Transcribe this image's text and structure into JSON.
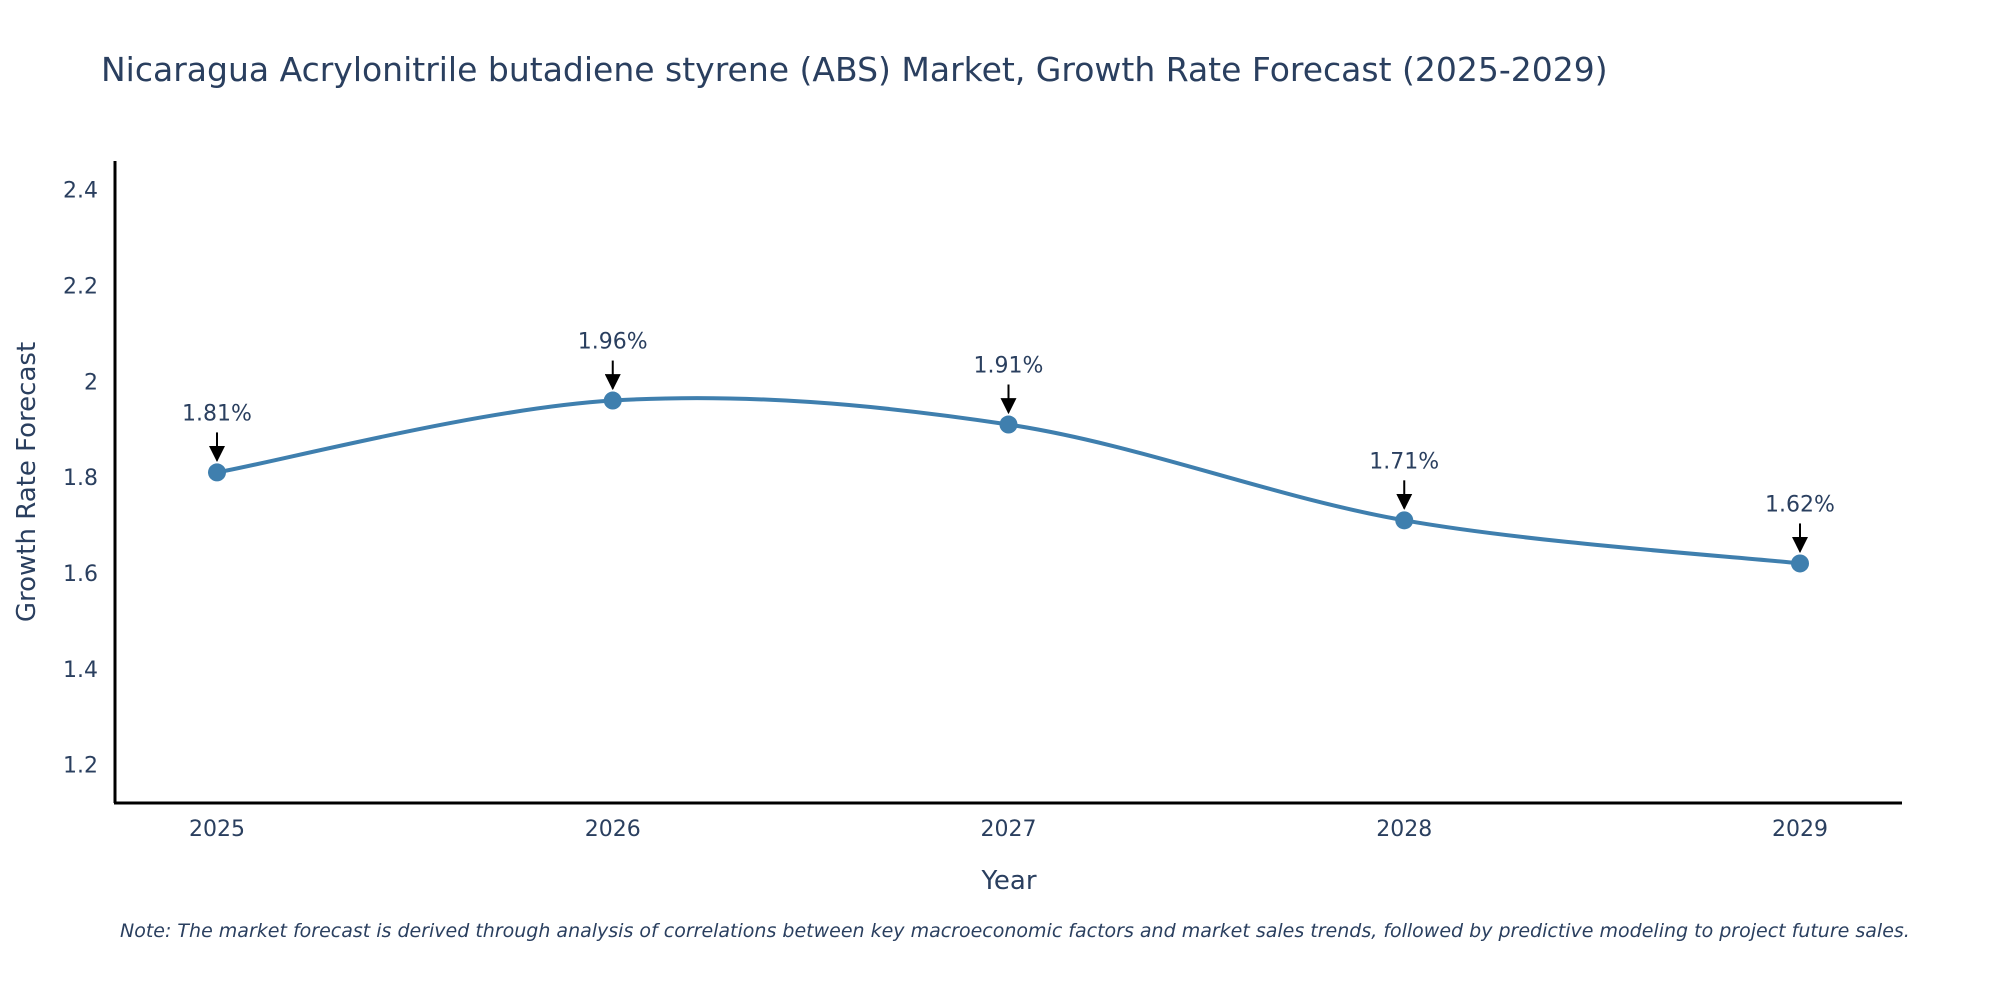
{
  "chart_data": {
    "type": "line",
    "title": "Nicaragua Acrylonitrile butadiene styrene (ABS) Market, Growth Rate Forecast (2025-2029)",
    "xlabel": "Year",
    "ylabel": "Growth Rate Forecast",
    "categories": [
      "2025",
      "2026",
      "2027",
      "2028",
      "2029"
    ],
    "series": [
      {
        "name": "Growth Rate Forecast",
        "values": [
          1.81,
          1.96,
          1.91,
          1.71,
          1.62
        ]
      }
    ],
    "data_labels": [
      "1.81%",
      "1.96%",
      "1.91%",
      "1.71%",
      "1.62%"
    ],
    "ylim": [
      1.12,
      2.46
    ],
    "yticks": [
      1.2,
      1.4,
      1.6,
      1.8,
      2,
      2.2,
      2.4
    ],
    "ytick_labels": [
      "1.2",
      "1.4",
      "1.6",
      "1.8",
      "2",
      "2.2",
      "2.4"
    ],
    "grid": false,
    "line_color": "#3f7fae",
    "note": "Note: The market forecast is derived through analysis of correlations between key macroeconomic factors and market sales trends, followed by predictive modeling to project future sales."
  }
}
